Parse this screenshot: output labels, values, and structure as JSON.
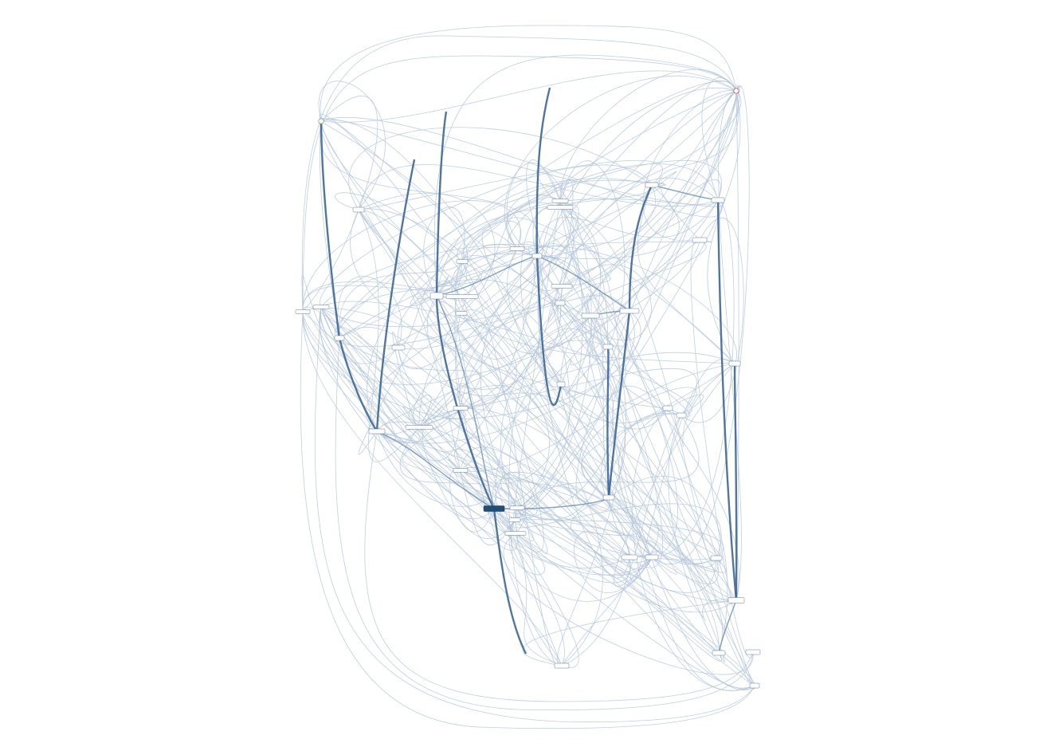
{
  "diagram": {
    "type": "process-map",
    "colors": {
      "edge": "#b4c6dc",
      "edge_heavy": "#3d6796",
      "node_border": "#4e6c92",
      "node_dark": "#1f4e79",
      "start": "#6aa84f",
      "end": "#c0392b"
    }
  }
}
